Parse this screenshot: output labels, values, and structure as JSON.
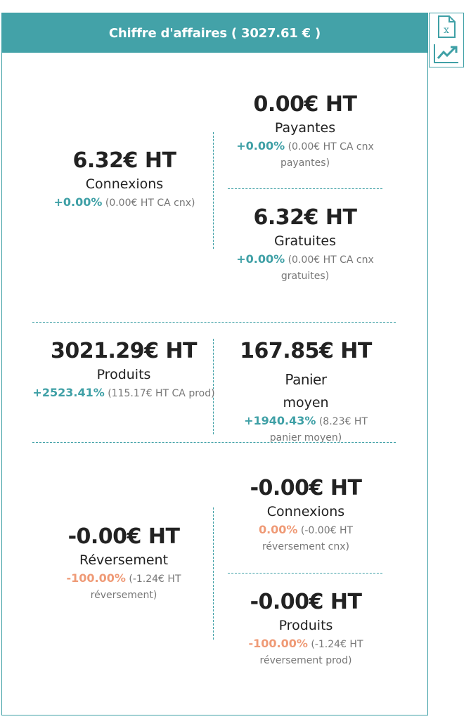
{
  "header": {
    "title": "Chiffre d'affaires ( 3027.61 € )"
  },
  "tools": {
    "excel_icon": "excel-export-icon",
    "chart_icon": "trend-chart-icon"
  },
  "colors": {
    "teal": "#43a2a8",
    "positive": "#3fa0a6",
    "negative": "#ef9a76"
  },
  "connexions": {
    "total": {
      "amount": "6.32€ HT",
      "label": "Connexions",
      "pct": "+0.00%",
      "detail": "(0.00€ HT CA cnx)"
    },
    "payantes": {
      "amount": "0.00€ HT",
      "label": "Payantes",
      "pct": "+0.00%",
      "detail": "(0.00€ HT CA cnx payantes)"
    },
    "gratuites": {
      "amount": "6.32€ HT",
      "label": "Gratuites",
      "pct": "+0.00%",
      "detail": "(0.00€ HT CA cnx gratuites)"
    }
  },
  "produits": {
    "total": {
      "amount": "3021.29€ HT",
      "label": "Produits",
      "pct": "+2523.41%",
      "detail": "(115.17€ HT CA prod)"
    },
    "panier": {
      "amount": "167.85€ HT",
      "suffix": "Panier",
      "label": "moyen",
      "pct": "+1940.43%",
      "detail": "(8.23€ HT panier moyen)"
    }
  },
  "reversement": {
    "total": {
      "amount": "-0.00€ HT",
      "label": "Réversement",
      "pct": "-100.00%",
      "detail": "(-1.24€ HT réversement)"
    },
    "connexions": {
      "amount": "-0.00€ HT",
      "label": "Connexions",
      "pct": "0.00%",
      "detail": "(-0.00€ HT réversement cnx)"
    },
    "produits": {
      "amount": "-0.00€ HT",
      "label": "Produits",
      "pct": "-100.00%",
      "detail": "(-1.24€ HT réversement prod)"
    }
  }
}
